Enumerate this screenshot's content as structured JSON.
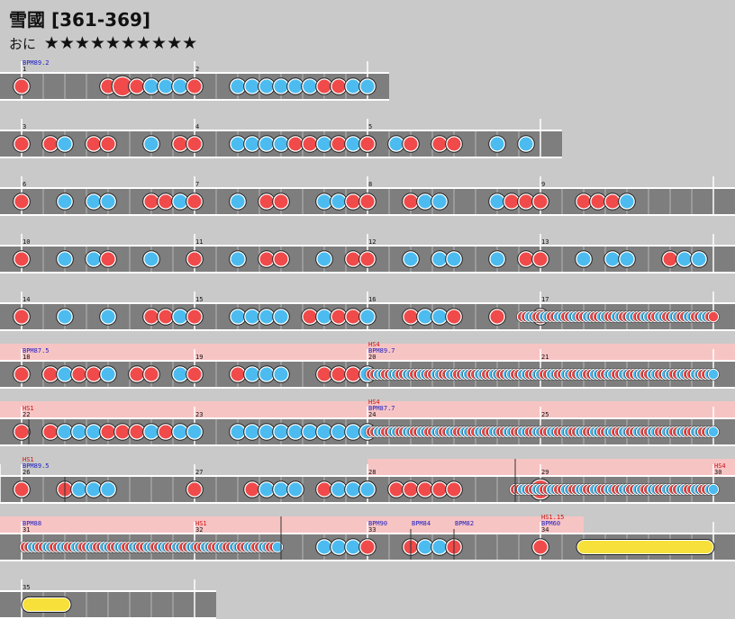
{
  "title": "雪國 [361-369]",
  "difficulty": {
    "label": "おに",
    "stars": "★★★★★★★★★★"
  },
  "colors": {
    "don": "#f04a4a",
    "ka": "#4cbcf0",
    "roll": "#f7e03a",
    "gogo": "#f7c4c4",
    "lane": "#7e7e7e",
    "bpm_text": "#1a1ac0",
    "hs_text": "#cc1111"
  },
  "rows": [
    {
      "y": 96,
      "measures": [
        {
          "n": "1",
          "bpm": "BPM89.2",
          "notes": [
            [
              0,
              "d"
            ],
            [
              6,
              "d"
            ],
            [
              7,
              "D"
            ],
            [
              8,
              "d"
            ],
            [
              9,
              "k"
            ],
            [
              10,
              "k"
            ],
            [
              11,
              "k"
            ],
            [
              12,
              "d"
            ]
          ]
        },
        {
          "n": "2",
          "notes": [
            [
              3,
              "k"
            ],
            [
              4,
              "k"
            ],
            [
              5,
              "k"
            ],
            [
              6,
              "k"
            ],
            [
              7,
              "k"
            ],
            [
              8,
              "k"
            ],
            [
              9,
              "d"
            ],
            [
              10,
              "d"
            ],
            [
              11,
              "k"
            ],
            [
              12,
              "k"
            ]
          ]
        }
      ]
    },
    {
      "y": 160,
      "measures": [
        {
          "n": "3",
          "notes": [
            [
              0,
              "d"
            ],
            [
              2,
              "d"
            ],
            [
              3,
              "k"
            ],
            [
              5,
              "d"
            ],
            [
              6,
              "d"
            ],
            [
              9,
              "k"
            ],
            [
              11,
              "d"
            ],
            [
              12,
              "d"
            ]
          ]
        },
        {
          "n": "4",
          "notes": [
            [
              3,
              "k"
            ],
            [
              4,
              "k"
            ],
            [
              5,
              "k"
            ],
            [
              6,
              "k"
            ],
            [
              7,
              "d"
            ],
            [
              8,
              "d"
            ],
            [
              9,
              "k"
            ],
            [
              10,
              "d"
            ],
            [
              11,
              "k"
            ],
            [
              12,
              "k"
            ]
          ]
        },
        {
          "n": "5",
          "notes": [
            [
              0,
              "d"
            ],
            [
              2,
              "k"
            ],
            [
              3,
              "d"
            ],
            [
              5,
              "d"
            ],
            [
              6,
              "d"
            ],
            [
              9,
              "k"
            ],
            [
              11,
              "k"
            ]
          ]
        }
      ]
    },
    {
      "y": 224,
      "measures": [
        {
          "n": "6",
          "notes": [
            [
              0,
              "d"
            ],
            [
              3,
              "k"
            ],
            [
              5,
              "k"
            ],
            [
              6,
              "k"
            ],
            [
              9,
              "d"
            ],
            [
              10,
              "d"
            ],
            [
              11,
              "k"
            ],
            [
              12,
              "d"
            ]
          ]
        },
        {
          "n": "7",
          "notes": [
            [
              3,
              "k"
            ],
            [
              5,
              "d"
            ],
            [
              6,
              "d"
            ],
            [
              9,
              "k"
            ],
            [
              10,
              "k"
            ],
            [
              11,
              "d"
            ],
            [
              12,
              "d"
            ]
          ]
        },
        {
          "n": "8",
          "notes": [
            [
              3,
              "d"
            ],
            [
              4,
              "k"
            ],
            [
              5,
              "k"
            ],
            [
              9,
              "k"
            ],
            [
              10,
              "d"
            ],
            [
              11,
              "d"
            ],
            [
              12,
              "d"
            ]
          ]
        },
        {
          "n": "9",
          "notes": [
            [
              3,
              "d"
            ],
            [
              4,
              "d"
            ],
            [
              5,
              "d"
            ],
            [
              6,
              "k"
            ]
          ]
        }
      ]
    },
    {
      "y": 288,
      "measures": [
        {
          "n": "10",
          "notes": [
            [
              0,
              "d"
            ],
            [
              3,
              "k"
            ],
            [
              5,
              "k"
            ],
            [
              6,
              "d"
            ],
            [
              9,
              "k"
            ],
            [
              12,
              "d"
            ]
          ]
        },
        {
          "n": "11",
          "notes": [
            [
              3,
              "k"
            ],
            [
              5,
              "d"
            ],
            [
              6,
              "d"
            ],
            [
              9,
              "k"
            ],
            [
              11,
              "d"
            ],
            [
              12,
              "d"
            ]
          ]
        },
        {
          "n": "12",
          "notes": [
            [
              3,
              "k"
            ],
            [
              5,
              "k"
            ],
            [
              6,
              "k"
            ],
            [
              9,
              "k"
            ],
            [
              11,
              "d"
            ],
            [
              12,
              "d"
            ]
          ]
        },
        {
          "n": "13",
          "notes": [
            [
              3,
              "k"
            ],
            [
              5,
              "k"
            ],
            [
              6,
              "k"
            ],
            [
              9,
              "d"
            ],
            [
              10,
              "k"
            ],
            [
              11,
              "k"
            ]
          ]
        }
      ]
    },
    {
      "y": 352,
      "measures": [
        {
          "n": "14",
          "notes": [
            [
              0,
              "d"
            ],
            [
              3,
              "k"
            ],
            [
              6,
              "k"
            ],
            [
              9,
              "d"
            ],
            [
              10,
              "d"
            ],
            [
              11,
              "k"
            ],
            [
              12,
              "d"
            ]
          ]
        },
        {
          "n": "15",
          "notes": [
            [
              3,
              "k"
            ],
            [
              4,
              "k"
            ],
            [
              5,
              "k"
            ],
            [
              6,
              "k"
            ],
            [
              8,
              "d"
            ],
            [
              9,
              "k"
            ],
            [
              10,
              "d"
            ],
            [
              11,
              "d"
            ],
            [
              12,
              "k"
            ]
          ]
        },
        {
          "n": "16",
          "notes": [
            [
              3,
              "d"
            ],
            [
              4,
              "k"
            ],
            [
              5,
              "k"
            ],
            [
              6,
              "d"
            ],
            [
              9,
              "d"
            ],
            [
              12,
              "d"
            ]
          ]
        },
        {
          "n": "17",
          "notes": []
        }
      ]
    },
    {
      "y": 416,
      "measures": [
        {
          "n": "18",
          "bpm": "BPM87.5",
          "notes": [
            [
              0,
              "d"
            ],
            [
              2,
              "d"
            ],
            [
              3,
              "k"
            ],
            [
              4,
              "d"
            ],
            [
              5,
              "d"
            ],
            [
              6,
              "k"
            ],
            [
              8,
              "d"
            ],
            [
              9,
              "d"
            ],
            [
              11,
              "k"
            ],
            [
              12,
              "d"
            ]
          ]
        },
        {
          "n": "19",
          "notes": [
            [
              3,
              "d"
            ],
            [
              4,
              "k"
            ],
            [
              5,
              "k"
            ],
            [
              6,
              "k"
            ],
            [
              9,
              "d"
            ],
            [
              10,
              "d"
            ],
            [
              11,
              "d"
            ],
            [
              12,
              "k"
            ]
          ]
        },
        {
          "n": "20",
          "bpm": "BPM89.7",
          "hs": "HS4",
          "notes": []
        },
        {
          "n": "21",
          "notes": []
        }
      ]
    },
    {
      "y": 480,
      "measures": [
        {
          "n": "22",
          "hs": "HS1",
          "notes": [
            [
              0,
              "d"
            ],
            [
              2,
              "d"
            ],
            [
              3,
              "k"
            ],
            [
              4,
              "k"
            ],
            [
              5,
              "k"
            ],
            [
              6,
              "d"
            ],
            [
              7,
              "d"
            ],
            [
              8,
              "d"
            ],
            [
              9,
              "k"
            ],
            [
              10,
              "d"
            ],
            [
              11,
              "k"
            ],
            [
              12,
              "k"
            ]
          ]
        },
        {
          "n": "23",
          "notes": [
            [
              3,
              "k"
            ],
            [
              4,
              "k"
            ],
            [
              5,
              "k"
            ],
            [
              6,
              "k"
            ],
            [
              7,
              "k"
            ],
            [
              8,
              "k"
            ],
            [
              9,
              "k"
            ],
            [
              10,
              "k"
            ],
            [
              11,
              "k"
            ],
            [
              12,
              "k"
            ]
          ]
        },
        {
          "n": "24",
          "bpm": "BPM87.7",
          "hs": "HS4",
          "notes": []
        },
        {
          "n": "25",
          "notes": []
        }
      ]
    },
    {
      "y": 544,
      "measures": [
        {
          "n": "26",
          "bpm": "BPM89.5",
          "hs": "HS1",
          "notes": [
            [
              0,
              "d"
            ],
            [
              3,
              "d"
            ],
            [
              4,
              "k"
            ],
            [
              5,
              "k"
            ],
            [
              6,
              "k"
            ]
          ]
        },
        {
          "n": "27",
          "notes": [
            [
              0,
              "d"
            ],
            [
              4,
              "d"
            ],
            [
              5,
              "k"
            ],
            [
              6,
              "k"
            ],
            [
              7,
              "k"
            ],
            [
              9,
              "d"
            ],
            [
              10,
              "k"
            ],
            [
              11,
              "k"
            ],
            [
              12,
              "d"
            ]
          ]
        },
        {
          "n": "28",
          "notes": [
            [
              0,
              "k"
            ],
            [
              2,
              "d"
            ],
            [
              3,
              "d"
            ],
            [
              4,
              "d"
            ],
            [
              5,
              "d"
            ],
            [
              6,
              "d"
            ]
          ]
        },
        {
          "n": "29",
          "notes": [
            [
              0,
              "D"
            ]
          ]
        },
        {
          "n": "30",
          "hs": "HS4",
          "notes": []
        }
      ]
    },
    {
      "y": 608,
      "measures": [
        {
          "n": "31",
          "bpm": "BPM88",
          "notes": []
        },
        {
          "n": "32",
          "hs": "HS1",
          "notes": [
            [
              9,
              "k"
            ],
            [
              10,
              "k"
            ],
            [
              11,
              "k"
            ],
            [
              12,
              "d"
            ]
          ]
        },
        {
          "n": "33",
          "bpm": "BPM90",
          "notes": [
            [
              3,
              "d"
            ],
            [
              4,
              "k"
            ],
            [
              5,
              "k"
            ],
            [
              6,
              "d"
            ]
          ]
        },
        {
          "n": "34",
          "bpm": "BPM60",
          "hs": "HS1.15",
          "notes": [
            [
              0,
              "d"
            ]
          ]
        }
      ]
    },
    {
      "y": 672,
      "measures": [
        {
          "n": "35",
          "notes": []
        }
      ]
    }
  ],
  "bpm_extra": [
    {
      "text": "BPM84",
      "row": 8
    },
    {
      "text": "BPM82",
      "row": 8
    }
  ]
}
